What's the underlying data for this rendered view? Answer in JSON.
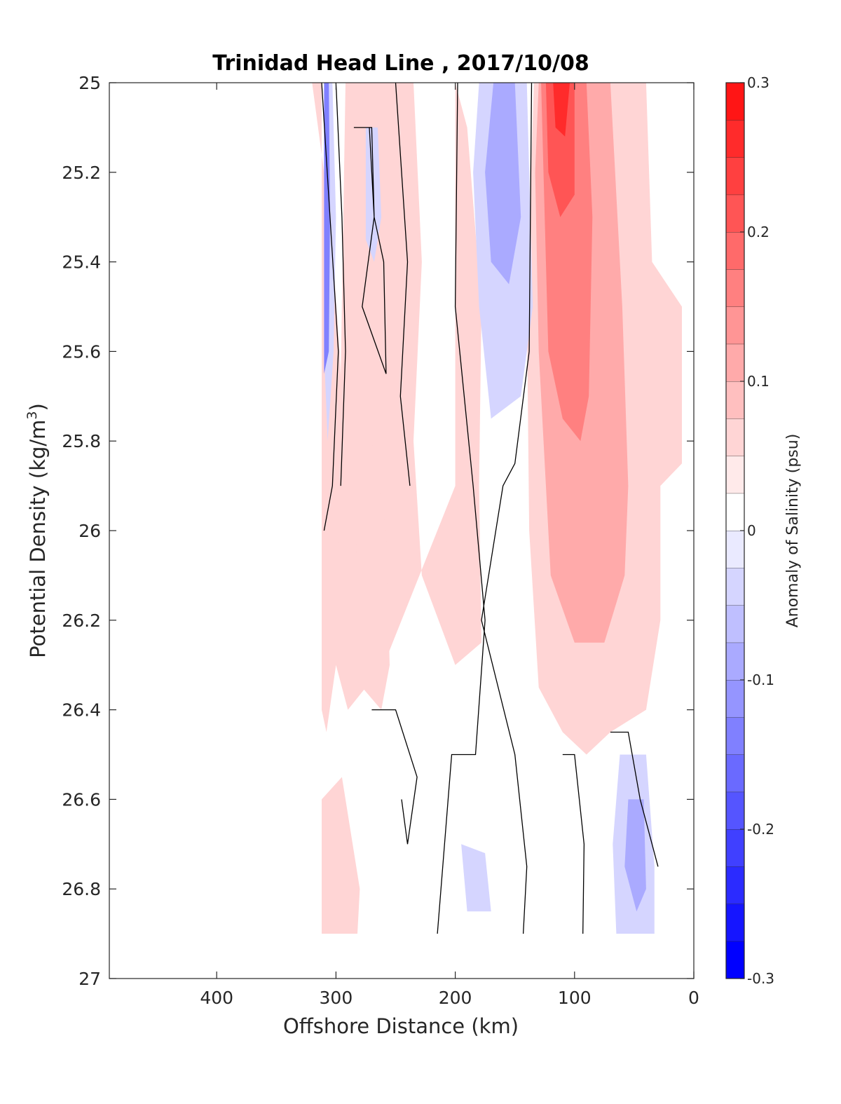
{
  "chart_data": {
    "type": "heatmap",
    "title": "Trinidad Head Line , 2017/10/08",
    "xlabel": "Offshore Distance (km)",
    "ylabel_main": "Potential Density (kg/m",
    "ylabel_sup": "3",
    "ylabel_close": ")",
    "xlim": [
      490,
      0
    ],
    "x_reversed": true,
    "ylim": [
      25,
      27
    ],
    "y_reversed": true,
    "xticks": [
      400,
      300,
      200,
      100,
      0
    ],
    "xtick_labels": [
      "400",
      "300",
      "200",
      "100",
      "0"
    ],
    "yticks": [
      25,
      25.2,
      25.4,
      25.6,
      25.8,
      26,
      26.2,
      26.4,
      26.6,
      26.8,
      27
    ],
    "ytick_labels": [
      "25",
      "25.2",
      "25.4",
      "25.6",
      "25.8",
      "26",
      "26.2",
      "26.4",
      "26.6",
      "26.8",
      "27"
    ],
    "colorbar": {
      "label": "Anomaly of Salinity (psu)",
      "lim": [
        -0.3,
        0.3
      ],
      "ticks": [
        0.3,
        0.2,
        0.1,
        0,
        -0.1,
        -0.2,
        -0.3
      ],
      "tick_labels": [
        "0.3",
        "0.2",
        "0.1",
        "0",
        "-0.1",
        "-0.2",
        "-0.3"
      ],
      "levels": [
        -0.3,
        -0.275,
        -0.25,
        -0.225,
        -0.2,
        -0.175,
        -0.15,
        -0.125,
        -0.1,
        -0.075,
        -0.05,
        -0.025,
        0,
        0.025,
        0.05,
        0.075,
        0.1,
        0.125,
        0.15,
        0.175,
        0.2,
        0.225,
        0.25,
        0.275,
        0.3
      ],
      "colors": [
        "#0000ff",
        "#1515ff",
        "#2b2bff",
        "#4040ff",
        "#5555ff",
        "#6a6aff",
        "#8080ff",
        "#9595ff",
        "#aaaaff",
        "#bfbfff",
        "#d5d5ff",
        "#eaeaff",
        "#ffffff",
        "#ffeaea",
        "#ffd5d5",
        "#ffbfbf",
        "#ffaaaa",
        "#ff9595",
        "#ff8080",
        "#ff6a6a",
        "#ff5555",
        "#ff4040",
        "#ff2b2b",
        "#ff1515"
      ]
    },
    "fields": [
      {
        "level": 0.05,
        "pts": [
          [
            312,
            25
          ],
          [
            320,
            25
          ],
          [
            305,
            25.3
          ],
          [
            297,
            25.6
          ],
          [
            292,
            25.9
          ],
          [
            300,
            26.3
          ],
          [
            308,
            26.45
          ],
          [
            312,
            26.4
          ]
        ]
      },
      {
        "level": 0.05,
        "pts": [
          [
            292,
            25
          ],
          [
            235,
            25
          ],
          [
            228,
            25.4
          ],
          [
            235,
            25.8
          ],
          [
            228,
            26.1
          ],
          [
            200,
            26.3
          ],
          [
            178,
            26.25
          ],
          [
            180,
            25.9
          ],
          [
            178,
            25.5
          ],
          [
            190,
            25.1
          ],
          [
            200,
            25
          ],
          [
            200,
            25.9
          ],
          [
            230,
            26.1
          ],
          [
            260,
            26.3
          ],
          [
            290,
            26.4
          ],
          [
            300,
            26.3
          ]
        ]
      },
      {
        "level": 0.05,
        "pts": [
          [
            282,
            25.8
          ],
          [
            270,
            25.8
          ],
          [
            258,
            26.0
          ],
          [
            255,
            26.3
          ],
          [
            262,
            26.4
          ],
          [
            278,
            26.35
          ],
          [
            283,
            26.1
          ]
        ]
      },
      {
        "level": 0.05,
        "pts": [
          [
            312,
            26.6
          ],
          [
            295,
            26.55
          ],
          [
            280,
            26.8
          ],
          [
            282,
            26.9
          ],
          [
            312,
            26.9
          ]
        ]
      },
      {
        "level": 0.05,
        "pts": [
          [
            134,
            25
          ],
          [
            40,
            25
          ],
          [
            35,
            25.4
          ],
          [
            10,
            25.5
          ],
          [
            10,
            25.85
          ],
          [
            28,
            25.9
          ],
          [
            28,
            26.2
          ],
          [
            40,
            26.4
          ],
          [
            70,
            26.45
          ],
          [
            90,
            26.5
          ],
          [
            110,
            26.45
          ],
          [
            130,
            26.35
          ],
          [
            138,
            26.0
          ],
          [
            140,
            25.5
          ]
        ]
      },
      {
        "level": 0.1,
        "pts": [
          [
            130,
            25
          ],
          [
            70,
            25
          ],
          [
            60,
            25.5
          ],
          [
            55,
            25.9
          ],
          [
            58,
            26.1
          ],
          [
            75,
            26.25
          ],
          [
            100,
            26.25
          ],
          [
            120,
            26.1
          ],
          [
            130,
            25.6
          ],
          [
            133,
            25.2
          ]
        ]
      },
      {
        "level": 0.15,
        "pts": [
          [
            128,
            25
          ],
          [
            90,
            25
          ],
          [
            85,
            25.3
          ],
          [
            88,
            25.7
          ],
          [
            95,
            25.8
          ],
          [
            110,
            25.75
          ],
          [
            122,
            25.6
          ],
          [
            126,
            25.2
          ]
        ]
      },
      {
        "level": 0.2,
        "pts": [
          [
            124,
            25
          ],
          [
            100,
            25
          ],
          [
            100,
            25.25
          ],
          [
            112,
            25.3
          ],
          [
            122,
            25.2
          ]
        ]
      },
      {
        "level": 0.25,
        "pts": [
          [
            118,
            25
          ],
          [
            104,
            25
          ],
          [
            108,
            25.12
          ],
          [
            116,
            25.1
          ]
        ]
      },
      {
        "level": -0.05,
        "pts": [
          [
            180,
            25
          ],
          [
            140,
            25
          ],
          [
            135,
            25.5
          ],
          [
            145,
            25.7
          ],
          [
            170,
            25.75
          ],
          [
            180,
            25.5
          ],
          [
            185,
            25.2
          ]
        ]
      },
      {
        "level": -0.1,
        "pts": [
          [
            168,
            25
          ],
          [
            150,
            25
          ],
          [
            145,
            25.3
          ],
          [
            155,
            25.45
          ],
          [
            170,
            25.4
          ],
          [
            175,
            25.2
          ]
        ]
      },
      {
        "level": -0.05,
        "pts": [
          [
            310,
            25
          ],
          [
            303,
            25
          ],
          [
            300,
            25.3
          ],
          [
            302,
            25.6
          ],
          [
            307,
            25.8
          ],
          [
            310,
            25.6
          ]
        ]
      },
      {
        "level": -0.15,
        "pts": [
          [
            310,
            25
          ],
          [
            306,
            25
          ],
          [
            305,
            25.3
          ],
          [
            306,
            25.6
          ],
          [
            310,
            25.65
          ]
        ]
      },
      {
        "level": -0.05,
        "pts": [
          [
            275,
            25.1
          ],
          [
            265,
            25.1
          ],
          [
            262,
            25.3
          ],
          [
            268,
            25.4
          ],
          [
            275,
            25.35
          ]
        ]
      },
      {
        "level": -0.05,
        "pts": [
          [
            195,
            26.7
          ],
          [
            175,
            26.72
          ],
          [
            170,
            26.85
          ],
          [
            190,
            26.85
          ]
        ]
      },
      {
        "level": -0.05,
        "pts": [
          [
            62,
            26.5
          ],
          [
            40,
            26.5
          ],
          [
            33,
            26.75
          ],
          [
            33,
            26.9
          ],
          [
            65,
            26.9
          ],
          [
            68,
            26.7
          ]
        ]
      },
      {
        "level": -0.1,
        "pts": [
          [
            55,
            26.6
          ],
          [
            42,
            26.6
          ],
          [
            40,
            26.8
          ],
          [
            48,
            26.85
          ],
          [
            58,
            26.75
          ]
        ]
      }
    ],
    "contours_zero": [
      [
        [
          312,
          25.0
        ],
        [
          305,
          25.3
        ],
        [
          298,
          25.6
        ],
        [
          303,
          25.9
        ],
        [
          310,
          26.0
        ]
      ],
      [
        [
          300,
          25.0
        ],
        [
          295,
          25.3
        ],
        [
          292,
          25.6
        ],
        [
          296,
          25.9
        ]
      ],
      [
        [
          285,
          25.1
        ],
        [
          270,
          25.1
        ],
        [
          268,
          25.3
        ],
        [
          278,
          25.5
        ],
        [
          258,
          25.65
        ],
        [
          260,
          25.4
        ],
        [
          268,
          25.3
        ],
        [
          272,
          25.1
        ]
      ],
      [
        [
          250,
          25.0
        ],
        [
          240,
          25.4
        ],
        [
          246,
          25.7
        ],
        [
          238,
          25.9
        ]
      ],
      [
        [
          198,
          25.0
        ],
        [
          200,
          25.5
        ],
        [
          185,
          25.9
        ],
        [
          175,
          26.2
        ],
        [
          183,
          26.5
        ],
        [
          203,
          26.5
        ],
        [
          215,
          26.9
        ]
      ],
      [
        [
          136,
          25.0
        ],
        [
          138,
          25.6
        ],
        [
          150,
          25.85
        ],
        [
          160,
          25.9
        ],
        [
          178,
          26.2
        ],
        [
          150,
          26.5
        ],
        [
          140,
          26.75
        ],
        [
          143,
          26.9
        ]
      ],
      [
        [
          270,
          26.4
        ],
        [
          250,
          26.4
        ],
        [
          232,
          26.55
        ],
        [
          240,
          26.7
        ],
        [
          245,
          26.6
        ]
      ],
      [
        [
          110,
          26.5
        ],
        [
          100,
          26.5
        ],
        [
          92,
          26.7
        ],
        [
          93,
          26.9
        ]
      ],
      [
        [
          70,
          26.45
        ],
        [
          55,
          26.45
        ],
        [
          45,
          26.6
        ],
        [
          30,
          26.75
        ]
      ]
    ]
  }
}
